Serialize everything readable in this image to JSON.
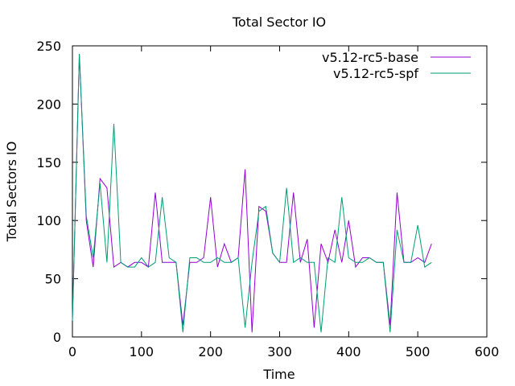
{
  "chart_data": {
    "type": "line",
    "title": "Total Sector IO",
    "xlabel": "Time",
    "ylabel": "Total Sectors IO",
    "xlim": [
      0,
      600
    ],
    "ylim": [
      0,
      250
    ],
    "xticks": [
      "0",
      "100",
      "200",
      "300",
      "400",
      "500",
      "600"
    ],
    "yticks": [
      "0",
      "50",
      "100",
      "150",
      "200",
      "250"
    ],
    "grid": false,
    "legend_position": "top-right",
    "x": [
      0,
      10,
      20,
      30,
      40,
      50,
      60,
      70,
      80,
      90,
      100,
      110,
      120,
      130,
      140,
      150,
      160,
      170,
      180,
      190,
      200,
      210,
      220,
      230,
      240,
      250,
      260,
      270,
      280,
      290,
      300,
      310,
      320,
      330,
      340,
      350,
      360,
      370,
      380,
      390,
      400,
      410,
      420,
      430,
      440,
      450,
      460,
      470,
      480,
      490,
      500,
      510,
      520
    ],
    "series": [
      {
        "name": "v5.12-rc5-base",
        "color": "#9400d3",
        "values": [
          14,
          243,
          100,
          60,
          136,
          128,
          60,
          64,
          60,
          64,
          64,
          60,
          124,
          64,
          64,
          64,
          10,
          64,
          64,
          68,
          120,
          60,
          80,
          64,
          68,
          144,
          4,
          112,
          108,
          72,
          64,
          64,
          124,
          64,
          84,
          8,
          80,
          64,
          92,
          64,
          100,
          60,
          68,
          68,
          64,
          64,
          10,
          124,
          64,
          64,
          68,
          64,
          80
        ]
      },
      {
        "name": "v5.12-rc5-spf",
        "color": "#009e73",
        "values": [
          14,
          243,
          104,
          68,
          132,
          64,
          183,
          64,
          60,
          60,
          68,
          60,
          64,
          120,
          68,
          64,
          4,
          68,
          68,
          64,
          64,
          68,
          64,
          64,
          68,
          8,
          64,
          108,
          112,
          72,
          64,
          128,
          64,
          68,
          64,
          64,
          4,
          68,
          64,
          120,
          68,
          64,
          64,
          68,
          64,
          64,
          4,
          92,
          64,
          64,
          96,
          60,
          64
        ]
      }
    ]
  }
}
